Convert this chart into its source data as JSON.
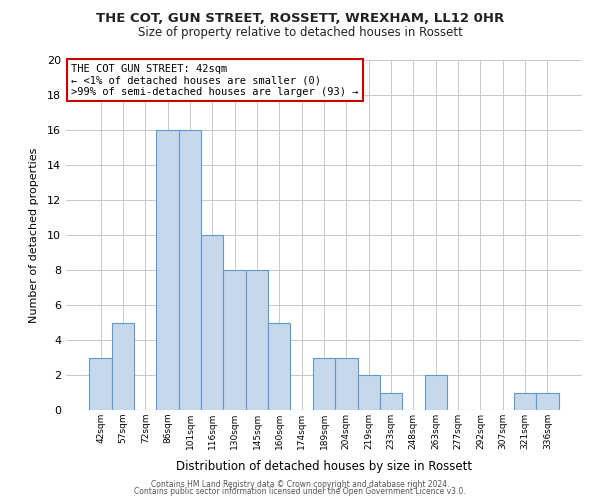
{
  "title": "THE COT, GUN STREET, ROSSETT, WREXHAM, LL12 0HR",
  "subtitle": "Size of property relative to detached houses in Rossett",
  "xlabel": "Distribution of detached houses by size in Rossett",
  "ylabel": "Number of detached properties",
  "bar_labels": [
    "42sqm",
    "57sqm",
    "72sqm",
    "86sqm",
    "101sqm",
    "116sqm",
    "130sqm",
    "145sqm",
    "160sqm",
    "174sqm",
    "189sqm",
    "204sqm",
    "219sqm",
    "233sqm",
    "248sqm",
    "263sqm",
    "277sqm",
    "292sqm",
    "307sqm",
    "321sqm",
    "336sqm"
  ],
  "bar_values": [
    3,
    5,
    0,
    16,
    16,
    10,
    8,
    8,
    5,
    0,
    3,
    3,
    2,
    1,
    0,
    2,
    0,
    0,
    0,
    1,
    1
  ],
  "bar_color": "#c8d8eb",
  "bar_edge_color": "#5b9bd5",
  "annotation_title": "THE COT GUN STREET: 42sqm",
  "annotation_line1": "← <1% of detached houses are smaller (0)",
  "annotation_line2": ">99% of semi-detached houses are larger (93) →",
  "annotation_box_color": "#ffffff",
  "annotation_border_color": "#cc0000",
  "ylim": [
    0,
    20
  ],
  "yticks": [
    0,
    2,
    4,
    6,
    8,
    10,
    12,
    14,
    16,
    18,
    20
  ],
  "grid_color": "#c8c8c8",
  "bg_color": "#ffffff",
  "footer1": "Contains HM Land Registry data © Crown copyright and database right 2024.",
  "footer2": "Contains public sector information licensed under the Open Government Licence v3.0."
}
